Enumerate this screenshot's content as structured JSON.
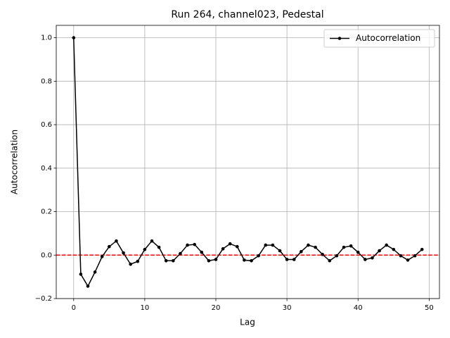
{
  "chart_data": {
    "type": "line",
    "title": "Run 264, channel023, Pedestal",
    "xlabel": "Lag",
    "ylabel": "Autocorrelation",
    "x": [
      0,
      1,
      2,
      3,
      4,
      5,
      6,
      7,
      8,
      9,
      10,
      11,
      12,
      13,
      14,
      15,
      16,
      17,
      18,
      19,
      20,
      21,
      22,
      23,
      24,
      25,
      26,
      27,
      28,
      29,
      30,
      31,
      32,
      33,
      34,
      35,
      36,
      37,
      38,
      39,
      40,
      41,
      42,
      43,
      44,
      45,
      46,
      47,
      48,
      49
    ],
    "series": [
      {
        "name": "Autocorrelation",
        "color": "#000000",
        "values": [
          1.0,
          -0.088,
          -0.143,
          -0.078,
          -0.007,
          0.039,
          0.065,
          0.01,
          -0.042,
          -0.029,
          0.026,
          0.065,
          0.036,
          -0.026,
          -0.026,
          0.007,
          0.046,
          0.049,
          0.013,
          -0.026,
          -0.02,
          0.029,
          0.052,
          0.039,
          -0.023,
          -0.026,
          -0.003,
          0.046,
          0.046,
          0.02,
          -0.02,
          -0.02,
          0.016,
          0.046,
          0.036,
          0.003,
          -0.026,
          -0.003,
          0.036,
          0.042,
          0.013,
          -0.02,
          -0.013,
          0.02,
          0.046,
          0.026,
          -0.003,
          -0.023,
          -0.003,
          0.026
        ]
      }
    ],
    "reference_line": {
      "value": 0,
      "color": "#ff0000",
      "style": "dashed"
    },
    "xlim": [
      -2.45,
      51.45
    ],
    "xticks": [
      0,
      10,
      20,
      30,
      40,
      50
    ],
    "ylim": [
      -0.2,
      1.057
    ],
    "yticks": [
      {
        "value": -0.2,
        "label": "−0.2"
      },
      {
        "value": 0,
        "label": "0.0"
      },
      0.2,
      0.4,
      0.6,
      0.8,
      {
        "value": 1,
        "label": "1.0"
      }
    ],
    "grid": true,
    "legend": "upper right"
  }
}
